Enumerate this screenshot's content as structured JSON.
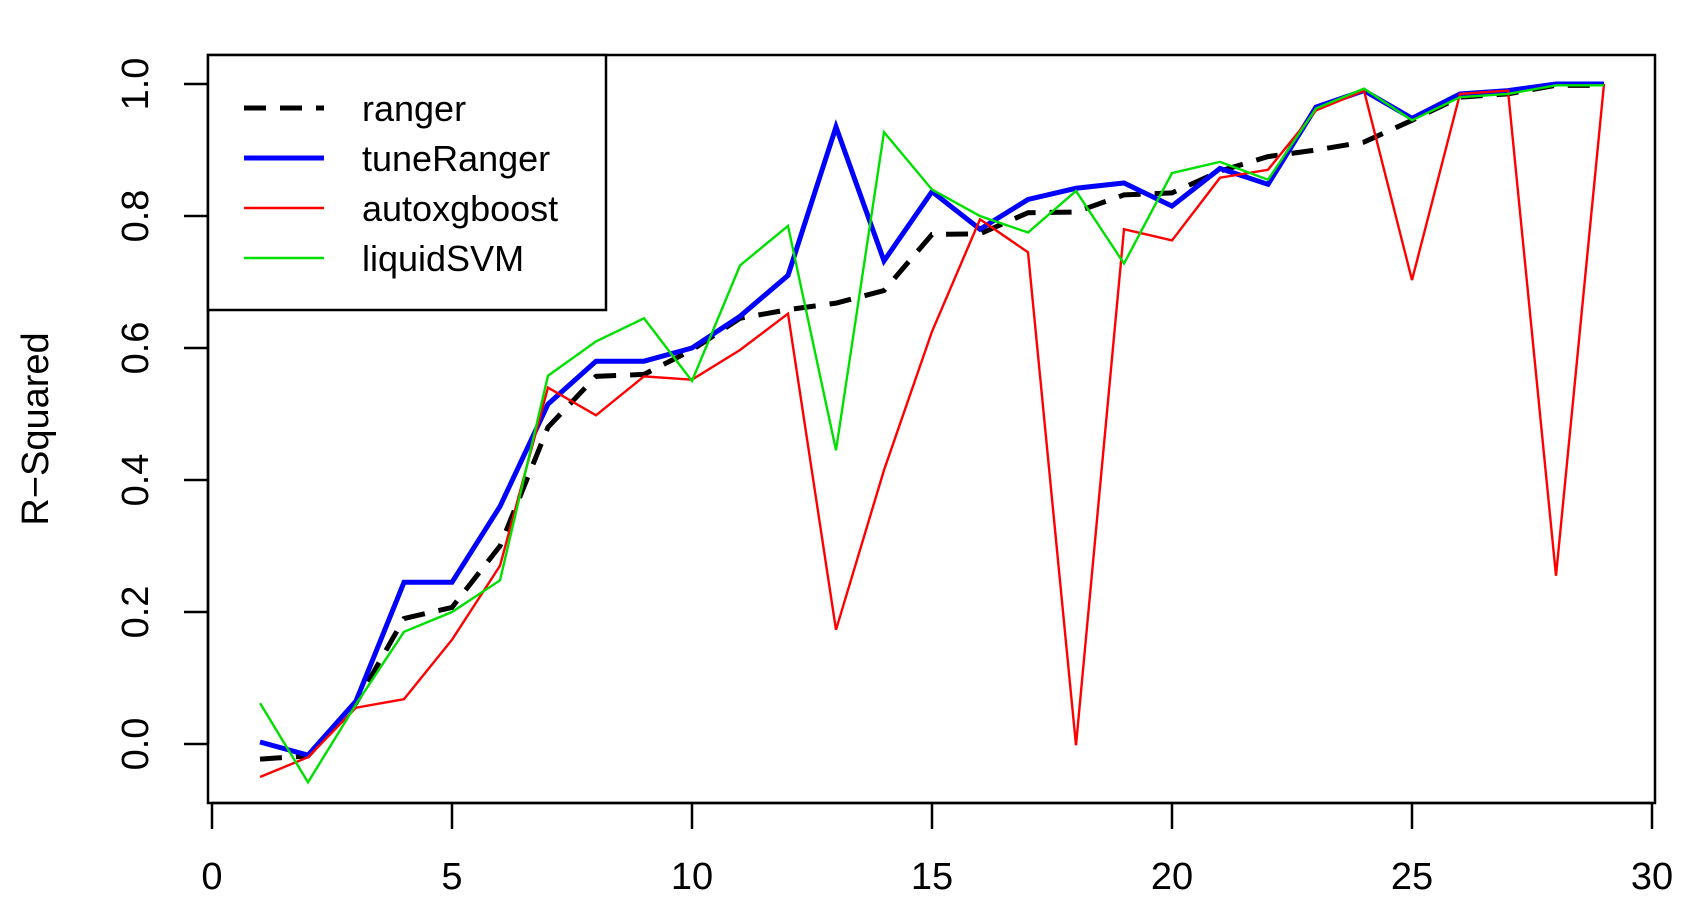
{
  "chart_data": {
    "type": "line",
    "title": "",
    "xlabel": "",
    "ylabel": "R−Squared",
    "xlim": [
      0,
      30
    ],
    "ylim": [
      -0.09,
      1.05
    ],
    "x_ticks": [
      0,
      5,
      10,
      15,
      20,
      25,
      30
    ],
    "y_ticks": [
      0.0,
      0.2,
      0.4,
      0.6,
      0.8,
      1.0
    ],
    "x_tick_labels": [
      "0",
      "5",
      "10",
      "15",
      "20",
      "25",
      "30"
    ],
    "y_tick_labels": [
      "0.0",
      "0.2",
      "0.4",
      "0.6",
      "0.8",
      "1.0"
    ],
    "grid": false,
    "legend_position": "top-left",
    "x": [
      1,
      2,
      3,
      4,
      5,
      6,
      7,
      8,
      9,
      10,
      11,
      12,
      13,
      14,
      15,
      16,
      17,
      18,
      19,
      20,
      21,
      22,
      23,
      24,
      25,
      26,
      27,
      28,
      29
    ],
    "series": [
      {
        "name": "ranger",
        "color": "#000000",
        "dash": "dashed",
        "width": "thick",
        "values": [
          -0.023,
          -0.018,
          0.062,
          0.19,
          0.207,
          0.3,
          0.48,
          0.557,
          0.56,
          0.597,
          0.645,
          0.658,
          0.668,
          0.687,
          0.772,
          0.773,
          0.805,
          0.806,
          0.832,
          0.835,
          0.868,
          0.89,
          0.9,
          0.912,
          0.945,
          0.98,
          0.985,
          0.998,
          0.998
        ]
      },
      {
        "name": "tuneRanger",
        "color": "#0000ff",
        "dash": "solid",
        "width": "thick",
        "values": [
          0.003,
          -0.017,
          0.065,
          0.245,
          0.245,
          0.36,
          0.515,
          0.58,
          0.58,
          0.6,
          0.648,
          0.71,
          0.935,
          0.732,
          0.837,
          0.78,
          0.825,
          0.842,
          0.85,
          0.815,
          0.872,
          0.848,
          0.965,
          0.99,
          0.948,
          0.985,
          0.99,
          1.0,
          1.0
        ]
      },
      {
        "name": "autoxgboost",
        "color": "#ff0000",
        "dash": "solid",
        "width": "thin",
        "values": [
          -0.05,
          -0.02,
          0.055,
          0.068,
          0.158,
          0.27,
          0.54,
          0.498,
          0.557,
          0.552,
          0.597,
          0.652,
          0.173,
          0.415,
          0.625,
          0.795,
          0.745,
          -0.002,
          0.78,
          0.763,
          0.858,
          0.87,
          0.96,
          0.99,
          0.703,
          0.985,
          0.99,
          0.255,
          1.0
        ]
      },
      {
        "name": "liquidSVM",
        "color": "#00e000",
        "dash": "solid",
        "width": "thin",
        "values": [
          0.062,
          -0.058,
          0.06,
          0.17,
          0.2,
          0.248,
          0.558,
          0.61,
          0.645,
          0.55,
          0.725,
          0.785,
          0.445,
          0.927,
          0.84,
          0.8,
          0.775,
          0.838,
          0.728,
          0.865,
          0.882,
          0.855,
          0.963,
          0.993,
          0.945,
          0.98,
          0.985,
          0.998,
          0.998
        ]
      }
    ]
  }
}
